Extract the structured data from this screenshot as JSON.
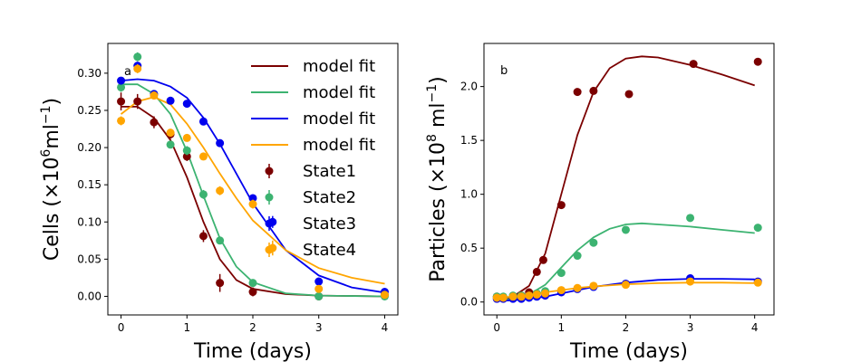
{
  "chart_data": [
    {
      "type": "scatter",
      "panel_label": "a",
      "xlabel": "Time (days)",
      "ylabel": "Cells (×10",
      "ylabel_sup1": "6",
      "ylabel_mid": "ml",
      "ylabel_sup2": "−1",
      "ylabel_end": ")",
      "xlim": [
        -0.2,
        4.2
      ],
      "ylim": [
        -0.025,
        0.34
      ],
      "xticks": [
        0,
        1,
        2,
        3,
        4
      ],
      "yticks": [
        0.0,
        0.05,
        0.1,
        0.15,
        0.2,
        0.25,
        0.3
      ],
      "ytick_labels": [
        "0.00",
        "0.05",
        "0.10",
        "0.15",
        "0.20",
        "0.25",
        "0.30"
      ],
      "legend": {
        "placement": "top-right",
        "entries": [
          "model fit",
          "model fit",
          "model fit",
          "model fit",
          "State1",
          "State2",
          "State3",
          "State4"
        ]
      },
      "series": [
        {
          "name": "State1",
          "color": "#7b0000",
          "points": [
            {
              "x": 0,
              "y": 0.262,
              "err": 0.012
            },
            {
              "x": 0.25,
              "y": 0.262,
              "err": 0.01
            },
            {
              "x": 0.5,
              "y": 0.234,
              "err": 0.008
            },
            {
              "x": 0.75,
              "y": 0.218,
              "err": 0.006
            },
            {
              "x": 1.0,
              "y": 0.188,
              "err": 0.006
            },
            {
              "x": 1.25,
              "y": 0.081,
              "err": 0.008
            },
            {
              "x": 1.5,
              "y": 0.018,
              "err": 0.012
            },
            {
              "x": 2.0,
              "y": 0.006,
              "err": 0.006
            },
            {
              "x": 3.0,
              "y": 0.0,
              "err": 0.005
            },
            {
              "x": 4.0,
              "y": 0.002,
              "err": 0.004
            }
          ],
          "fit": [
            [
              0,
              0.255
            ],
            [
              0.25,
              0.255
            ],
            [
              0.5,
              0.24
            ],
            [
              0.75,
              0.21
            ],
            [
              1.0,
              0.16
            ],
            [
              1.25,
              0.1
            ],
            [
              1.5,
              0.05
            ],
            [
              1.75,
              0.022
            ],
            [
              2.0,
              0.01
            ],
            [
              2.5,
              0.003
            ],
            [
              3.0,
              0.001
            ],
            [
              4.0,
              0.0
            ]
          ]
        },
        {
          "name": "State2",
          "color": "#3cb371",
          "points": [
            {
              "x": 0,
              "y": 0.281,
              "err": 0.006
            },
            {
              "x": 0.25,
              "y": 0.322,
              "err": 0.006
            },
            {
              "x": 0.5,
              "y": 0.272,
              "err": 0.005
            },
            {
              "x": 0.75,
              "y": 0.204,
              "err": 0.005
            },
            {
              "x": 1.0,
              "y": 0.196,
              "err": 0.006
            },
            {
              "x": 1.25,
              "y": 0.137,
              "err": 0.006
            },
            {
              "x": 1.5,
              "y": 0.075,
              "err": 0.005
            },
            {
              "x": 2.0,
              "y": 0.018,
              "err": 0.004
            },
            {
              "x": 3.0,
              "y": 0.0,
              "err": 0.005
            },
            {
              "x": 4.0,
              "y": 0.0,
              "err": 0.005
            }
          ],
          "fit": [
            [
              0,
              0.285
            ],
            [
              0.25,
              0.285
            ],
            [
              0.5,
              0.272
            ],
            [
              0.75,
              0.245
            ],
            [
              1.0,
              0.195
            ],
            [
              1.25,
              0.135
            ],
            [
              1.5,
              0.078
            ],
            [
              1.75,
              0.04
            ],
            [
              2.0,
              0.019
            ],
            [
              2.5,
              0.004
            ],
            [
              3.0,
              0.001
            ],
            [
              4.0,
              0.0
            ]
          ]
        },
        {
          "name": "State3",
          "color": "#0000ee",
          "points": [
            {
              "x": 0,
              "y": 0.29,
              "err": 0.004
            },
            {
              "x": 0.25,
              "y": 0.31,
              "err": 0.004
            },
            {
              "x": 0.5,
              "y": 0.272,
              "err": 0.004
            },
            {
              "x": 0.75,
              "y": 0.263,
              "err": 0.004
            },
            {
              "x": 1.0,
              "y": 0.259,
              "err": 0.004
            },
            {
              "x": 1.25,
              "y": 0.235,
              "err": 0.004
            },
            {
              "x": 1.5,
              "y": 0.206,
              "err": 0.004
            },
            {
              "x": 2.0,
              "y": 0.132,
              "err": 0.005
            },
            {
              "x": 2.3,
              "y": 0.1,
              "err": 0.008
            },
            {
              "x": 3.0,
              "y": 0.02,
              "err": 0.004
            },
            {
              "x": 4.0,
              "y": 0.006,
              "err": 0.004
            }
          ],
          "fit": [
            [
              0,
              0.29
            ],
            [
              0.25,
              0.292
            ],
            [
              0.5,
              0.29
            ],
            [
              0.75,
              0.282
            ],
            [
              1.0,
              0.267
            ],
            [
              1.25,
              0.24
            ],
            [
              1.5,
              0.205
            ],
            [
              1.75,
              0.165
            ],
            [
              2.0,
              0.125
            ],
            [
              2.5,
              0.062
            ],
            [
              3.0,
              0.028
            ],
            [
              3.5,
              0.012
            ],
            [
              4.0,
              0.005
            ]
          ]
        },
        {
          "name": "State4",
          "color": "#ffa500",
          "points": [
            {
              "x": 0,
              "y": 0.236,
              "err": 0.006
            },
            {
              "x": 0.25,
              "y": 0.306,
              "err": 0.006
            },
            {
              "x": 0.5,
              "y": 0.27,
              "err": 0.005
            },
            {
              "x": 0.75,
              "y": 0.22,
              "err": 0.005
            },
            {
              "x": 1.0,
              "y": 0.213,
              "err": 0.005
            },
            {
              "x": 1.25,
              "y": 0.188,
              "err": 0.005
            },
            {
              "x": 1.5,
              "y": 0.142,
              "err": 0.006
            },
            {
              "x": 2.0,
              "y": 0.124,
              "err": 0.006
            },
            {
              "x": 2.3,
              "y": 0.065,
              "err": 0.01
            },
            {
              "x": 3.0,
              "y": 0.01,
              "err": 0.004
            },
            {
              "x": 4.0,
              "y": 0.002,
              "err": 0.004
            }
          ],
          "fit": [
            [
              0,
              0.245
            ],
            [
              0.25,
              0.262
            ],
            [
              0.5,
              0.268
            ],
            [
              0.75,
              0.258
            ],
            [
              1.0,
              0.232
            ],
            [
              1.25,
              0.2
            ],
            [
              1.5,
              0.165
            ],
            [
              1.75,
              0.132
            ],
            [
              2.0,
              0.102
            ],
            [
              2.5,
              0.062
            ],
            [
              3.0,
              0.038
            ],
            [
              3.5,
              0.025
            ],
            [
              4.0,
              0.017
            ]
          ]
        }
      ]
    },
    {
      "type": "scatter",
      "panel_label": "b",
      "xlabel": "Time (days)",
      "ylabel": "Particles (×10",
      "ylabel_sup1": "8",
      "ylabel_mid": " ml",
      "ylabel_sup2": "−1",
      "ylabel_end": ")",
      "xlim": [
        -0.2,
        4.3
      ],
      "ylim": [
        -0.12,
        2.4
      ],
      "xticks": [
        0,
        1,
        2,
        3,
        4
      ],
      "yticks": [
        0.0,
        0.5,
        1.0,
        1.5,
        2.0
      ],
      "ytick_labels": [
        "0.0",
        "0.5",
        "1.0",
        "1.5",
        "2.0"
      ],
      "series": [
        {
          "name": "State1",
          "color": "#7b0000",
          "points": [
            {
              "x": 0,
              "y": 0.05
            },
            {
              "x": 0.1,
              "y": 0.04
            },
            {
              "x": 0.25,
              "y": 0.04
            },
            {
              "x": 0.38,
              "y": 0.06
            },
            {
              "x": 0.5,
              "y": 0.09
            },
            {
              "x": 0.62,
              "y": 0.28
            },
            {
              "x": 0.72,
              "y": 0.39
            },
            {
              "x": 1.0,
              "y": 0.9
            },
            {
              "x": 1.25,
              "y": 1.95
            },
            {
              "x": 1.5,
              "y": 1.96
            },
            {
              "x": 2.05,
              "y": 1.93
            },
            {
              "x": 3.05,
              "y": 2.21
            },
            {
              "x": 4.05,
              "y": 2.23
            }
          ],
          "fit": [
            [
              0,
              0.02
            ],
            [
              0.25,
              0.05
            ],
            [
              0.5,
              0.15
            ],
            [
              0.75,
              0.45
            ],
            [
              1.0,
              1.0
            ],
            [
              1.25,
              1.55
            ],
            [
              1.5,
              1.95
            ],
            [
              1.75,
              2.17
            ],
            [
              2.0,
              2.26
            ],
            [
              2.25,
              2.28
            ],
            [
              2.5,
              2.27
            ],
            [
              3.0,
              2.2
            ],
            [
              3.5,
              2.11
            ],
            [
              4.0,
              2.01
            ]
          ]
        },
        {
          "name": "State2",
          "color": "#3cb371",
          "points": [
            {
              "x": 0,
              "y": 0.05
            },
            {
              "x": 0.1,
              "y": 0.05
            },
            {
              "x": 0.25,
              "y": 0.06
            },
            {
              "x": 0.38,
              "y": 0.06
            },
            {
              "x": 0.5,
              "y": 0.06
            },
            {
              "x": 0.62,
              "y": 0.08
            },
            {
              "x": 0.75,
              "y": 0.1
            },
            {
              "x": 1.0,
              "y": 0.27
            },
            {
              "x": 1.25,
              "y": 0.43
            },
            {
              "x": 1.5,
              "y": 0.55
            },
            {
              "x": 2.0,
              "y": 0.67
            },
            {
              "x": 3.0,
              "y": 0.78
            },
            {
              "x": 4.05,
              "y": 0.69
            }
          ],
          "fit": [
            [
              0,
              0.02
            ],
            [
              0.25,
              0.03
            ],
            [
              0.5,
              0.07
            ],
            [
              0.75,
              0.16
            ],
            [
              1.0,
              0.32
            ],
            [
              1.25,
              0.48
            ],
            [
              1.5,
              0.6
            ],
            [
              1.75,
              0.68
            ],
            [
              2.0,
              0.72
            ],
            [
              2.25,
              0.73
            ],
            [
              2.5,
              0.72
            ],
            [
              3.0,
              0.7
            ],
            [
              3.5,
              0.67
            ],
            [
              4.0,
              0.64
            ]
          ]
        },
        {
          "name": "State3",
          "color": "#0000ee",
          "points": [
            {
              "x": 0,
              "y": 0.03
            },
            {
              "x": 0.1,
              "y": 0.03
            },
            {
              "x": 0.25,
              "y": 0.03
            },
            {
              "x": 0.38,
              "y": 0.03
            },
            {
              "x": 0.5,
              "y": 0.04
            },
            {
              "x": 0.62,
              "y": 0.05
            },
            {
              "x": 0.75,
              "y": 0.06
            },
            {
              "x": 1.0,
              "y": 0.09
            },
            {
              "x": 1.25,
              "y": 0.12
            },
            {
              "x": 1.5,
              "y": 0.14
            },
            {
              "x": 2.0,
              "y": 0.17
            },
            {
              "x": 3.0,
              "y": 0.22
            },
            {
              "x": 4.05,
              "y": 0.19
            }
          ],
          "fit": [
            [
              0,
              0.01
            ],
            [
              0.25,
              0.015
            ],
            [
              0.5,
              0.03
            ],
            [
              0.75,
              0.05
            ],
            [
              1.0,
              0.08
            ],
            [
              1.25,
              0.11
            ],
            [
              1.5,
              0.14
            ],
            [
              2.0,
              0.18
            ],
            [
              2.5,
              0.205
            ],
            [
              3.0,
              0.215
            ],
            [
              3.5,
              0.215
            ],
            [
              4.0,
              0.21
            ]
          ]
        },
        {
          "name": "State4",
          "color": "#ffa500",
          "points": [
            {
              "x": 0,
              "y": 0.04
            },
            {
              "x": 0.1,
              "y": 0.04
            },
            {
              "x": 0.25,
              "y": 0.05
            },
            {
              "x": 0.38,
              "y": 0.05
            },
            {
              "x": 0.5,
              "y": 0.06
            },
            {
              "x": 0.62,
              "y": 0.07
            },
            {
              "x": 0.75,
              "y": 0.08
            },
            {
              "x": 1.0,
              "y": 0.11
            },
            {
              "x": 1.25,
              "y": 0.13
            },
            {
              "x": 1.5,
              "y": 0.15
            },
            {
              "x": 2.0,
              "y": 0.16
            },
            {
              "x": 3.0,
              "y": 0.19
            },
            {
              "x": 4.05,
              "y": 0.18
            }
          ],
          "fit": [
            [
              0,
              0.04
            ],
            [
              0.25,
              0.05
            ],
            [
              0.5,
              0.07
            ],
            [
              0.75,
              0.09
            ],
            [
              1.0,
              0.11
            ],
            [
              1.25,
              0.13
            ],
            [
              1.5,
              0.145
            ],
            [
              2.0,
              0.165
            ],
            [
              2.5,
              0.175
            ],
            [
              3.0,
              0.18
            ],
            [
              3.5,
              0.18
            ],
            [
              4.0,
              0.175
            ]
          ]
        }
      ]
    }
  ]
}
